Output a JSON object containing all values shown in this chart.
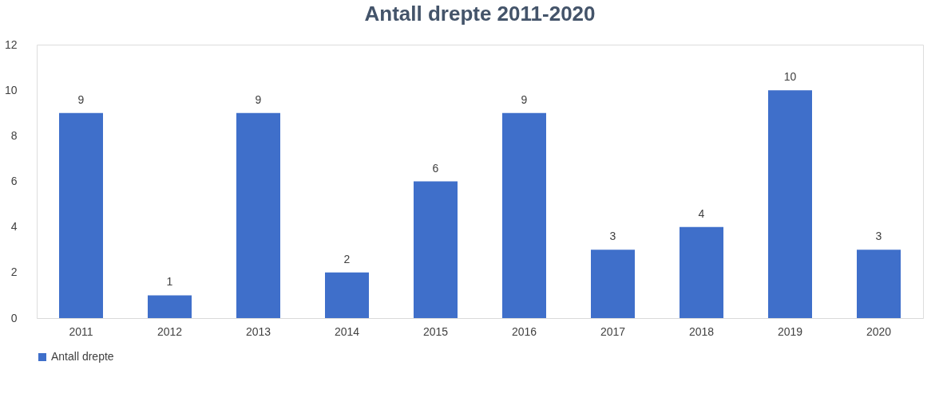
{
  "chart_data": {
    "type": "bar",
    "title": "Antall drepte 2011-2020",
    "categories": [
      "2011",
      "2012",
      "2013",
      "2014",
      "2015",
      "2016",
      "2017",
      "2018",
      "2019",
      "2020"
    ],
    "series": [
      {
        "name": "Antall drepte",
        "color": "#3f6fca",
        "values": [
          9,
          1,
          9,
          2,
          6,
          9,
          3,
          4,
          10,
          3
        ]
      }
    ],
    "ylim": [
      0,
      12
    ],
    "yticks": [
      0,
      2,
      4,
      6,
      8,
      10,
      12
    ],
    "grid": false,
    "legend": "bottom",
    "data_labels": true
  }
}
